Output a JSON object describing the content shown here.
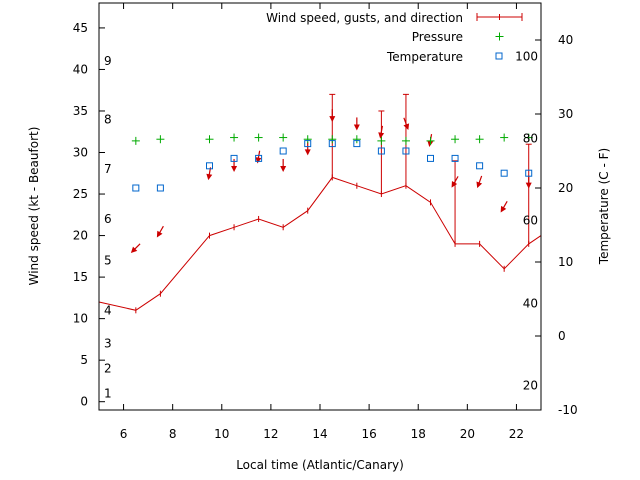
{
  "chart_data": {
    "type": "line",
    "xlabel": "Local time (Atlantic/Canary)",
    "ylabel": "Wind speed (kt - Beaufort)",
    "y2label": "Temperature (C - F)",
    "xlim": [
      5,
      23
    ],
    "ylim": [
      -1,
      48
    ],
    "y2lim": [
      -10,
      45
    ],
    "x_ticks": [
      6,
      8,
      10,
      12,
      14,
      16,
      18,
      20,
      22
    ],
    "y_ticks": [
      0,
      5,
      10,
      15,
      20,
      25,
      30,
      35,
      40,
      45
    ],
    "y2_ticks": [
      -10,
      0,
      10,
      20,
      30,
      40
    ],
    "grid": false,
    "legend_position": "top-right",
    "colors": {
      "wind": "#cc0000",
      "pressure": "#00aa00",
      "temperature": "#0066cc"
    },
    "beaufort_labels": [
      {
        "label": "1",
        "kt": 1
      },
      {
        "label": "2",
        "kt": 4
      },
      {
        "label": "3",
        "kt": 7
      },
      {
        "label": "4",
        "kt": 11
      },
      {
        "label": "5",
        "kt": 17
      },
      {
        "label": "6",
        "kt": 22
      },
      {
        "label": "7",
        "kt": 28
      },
      {
        "label": "8",
        "kt": 34
      },
      {
        "label": "9",
        "kt": 41
      }
    ],
    "fahrenheit_labels": [
      {
        "label": "20",
        "celsius": -6.7
      },
      {
        "label": "40",
        "celsius": 4.4
      },
      {
        "label": "60",
        "celsius": 15.6
      },
      {
        "label": "80",
        "celsius": 26.7
      },
      {
        "label": "100",
        "celsius": 37.8
      }
    ],
    "series": [
      {
        "name": "Wind speed, gusts, and direction",
        "axis": "y",
        "x": [
          5,
          6.5,
          7.5,
          9.5,
          10.5,
          11.5,
          12.5,
          13.5,
          14.5,
          15.5,
          16.5,
          17.5,
          18.5,
          19.5,
          20.5,
          21.5,
          22.5,
          23
        ],
        "values": [
          12,
          11,
          13,
          20,
          21,
          22,
          21,
          23,
          27,
          26,
          25,
          26,
          24,
          19,
          19,
          16,
          19,
          20
        ],
        "gusts": [
          null,
          null,
          null,
          null,
          null,
          null,
          null,
          null,
          37,
          null,
          35,
          37,
          null,
          29,
          null,
          null,
          31,
          null
        ],
        "direction_deg": [
          null,
          45,
          30,
          10,
          0,
          10,
          0,
          0,
          0,
          0,
          10,
          340,
          10,
          30,
          20,
          30,
          0,
          null
        ]
      },
      {
        "name": "Pressure",
        "axis": "y",
        "x": [
          6.5,
          7.5,
          9.5,
          10.5,
          11.5,
          12.5,
          13.5,
          14.5,
          15.5,
          16.5,
          17.5,
          18.5,
          19.5,
          20.5,
          21.5,
          22.5
        ],
        "values": [
          31.4,
          31.6,
          31.6,
          31.8,
          31.8,
          31.8,
          31.6,
          31.6,
          31.6,
          31.4,
          31.4,
          31.4,
          31.6,
          31.6,
          31.8,
          31.8
        ]
      },
      {
        "name": "Temperature",
        "axis": "y2",
        "x": [
          6.5,
          7.5,
          9.5,
          10.5,
          11.5,
          12.5,
          13.5,
          14.5,
          15.5,
          16.5,
          17.5,
          18.5,
          19.5,
          20.5,
          21.5,
          22.5
        ],
        "values": [
          20,
          20,
          23,
          24,
          24,
          25,
          26,
          26,
          26,
          25,
          25,
          24,
          24,
          23,
          22,
          22
        ]
      }
    ]
  }
}
